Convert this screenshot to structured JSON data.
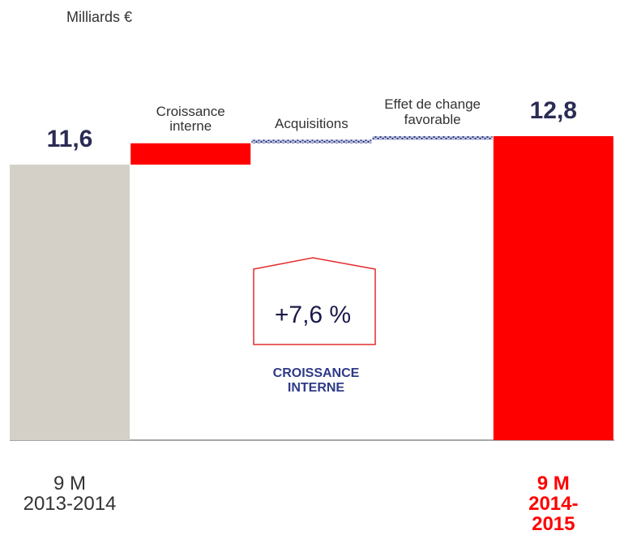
{
  "chart_data": {
    "type": "waterfall",
    "unit_label": "Milliards €",
    "categories": [
      "9 M\n2013-2014",
      "Croissance\ninterne",
      "Acquisitions",
      "Effet de change\nfavorable",
      "9 M\n2014-2015"
    ],
    "values": [
      11.6,
      0.9,
      0.15,
      0.15,
      12.8
    ],
    "value_labels": [
      "11,6",
      null,
      null,
      null,
      "12,8"
    ],
    "totals": [
      true,
      false,
      false,
      false,
      true
    ],
    "colors": [
      "#d4d0c8",
      "#ff0000",
      "#2e3a87",
      "#2e3a87",
      "#ff0000"
    ],
    "patterns": [
      "solid",
      "solid",
      "dotted",
      "dotted",
      "solid"
    ],
    "annotation": {
      "value": "+7,6 %",
      "label": "CROISSANCE\nINTERNE"
    }
  }
}
